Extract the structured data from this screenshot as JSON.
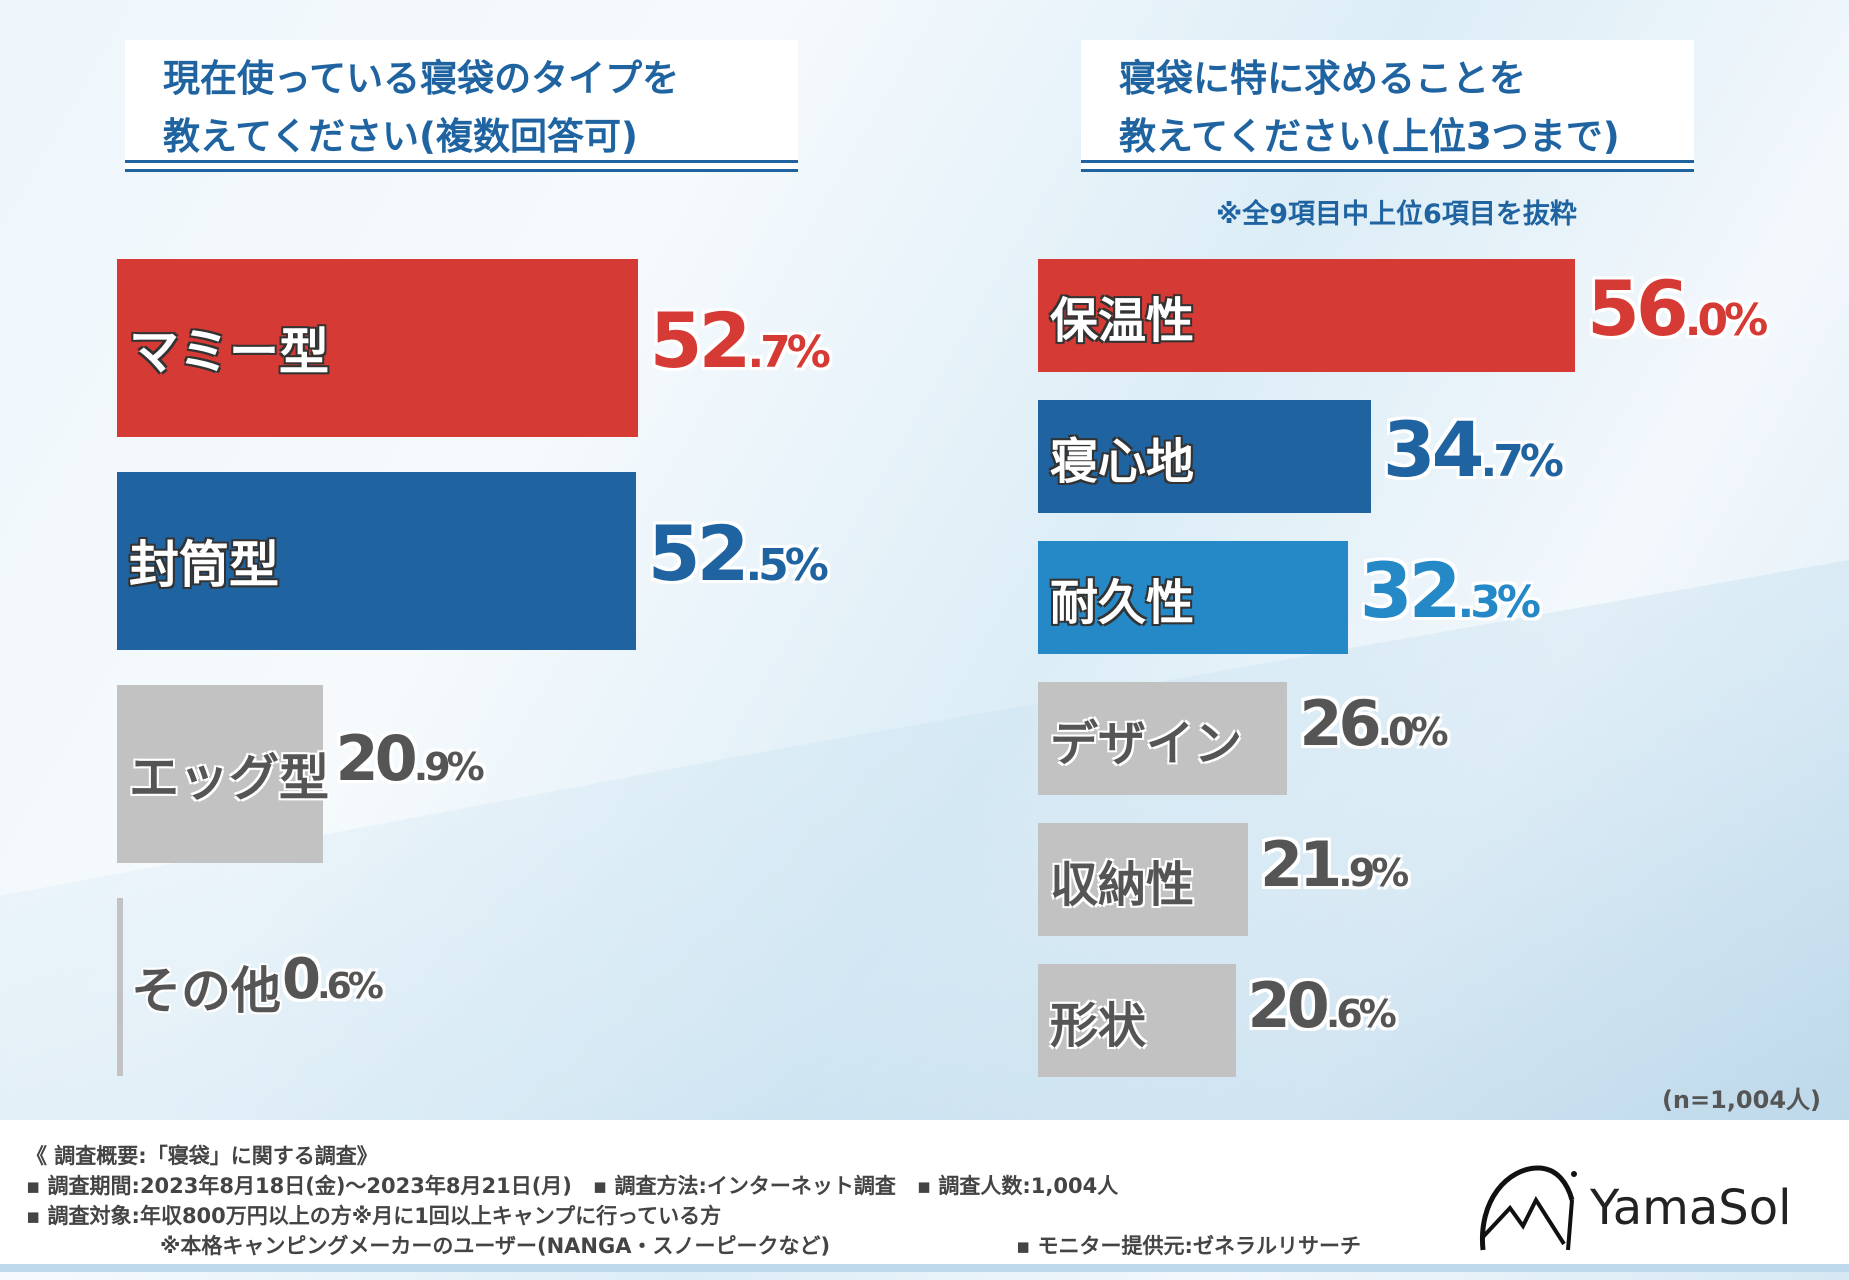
{
  "colors": {
    "red": "#d63a34",
    "blue": "#1f64a0",
    "lightblue": "#2589c8",
    "gray": "#c2c2c2"
  },
  "left": {
    "title1": "現在使っている寝袋のタイプを",
    "title2": "教えてください(複数回答可)"
  },
  "right": {
    "title1": "寝袋に特に求めることを",
    "title2": "教えてください(上位3つまで)",
    "note": "※全9項目中上位6項目を抜粋"
  },
  "chart_data": [
    {
      "type": "bar",
      "orientation": "horizontal",
      "title": "現在使っている寝袋のタイプを教えてください(複数回答可)",
      "unit": "%",
      "categories": [
        "マミー型",
        "封筒型",
        "エッグ型",
        "その他"
      ],
      "values": [
        52.7,
        52.5,
        20.9,
        0.6
      ],
      "bar_colors": [
        "#d63a34",
        "#1f64a0",
        "#c2c2c2",
        "#c2c2c2"
      ]
    },
    {
      "type": "bar",
      "orientation": "horizontal",
      "title": "寝袋に特に求めることを教えてください(上位3つまで)",
      "unit": "%",
      "categories": [
        "保温性",
        "寝心地",
        "耐久性",
        "デザイン",
        "収納性",
        "形状"
      ],
      "values": [
        56.0,
        34.7,
        32.3,
        26.0,
        21.9,
        20.6
      ],
      "bar_colors": [
        "#d63a34",
        "#1f64a0",
        "#2589c8",
        "#c2c2c2",
        "#c2c2c2",
        "#c2c2c2"
      ]
    }
  ],
  "sample": "(n=1,004人)",
  "footer": {
    "line1": "《 調査概要:「寝袋」に関する調査》",
    "line2": "▪ 調査期間:2023年8月18日(金)〜2023年8月21日(月)　▪ 調査方法:インターネット調査　▪ 調査人数:1,004人",
    "line3": "▪ 調査対象:年収800万円以上の方※月に1回以上キャンプに行っている方",
    "line4": "※本格キャンピングメーカーのユーザー(NANGA・スノーピークなど)",
    "line5": "▪ モニター提供元:ゼネラルリサーチ"
  },
  "logo": {
    "text": "YamaSol"
  }
}
